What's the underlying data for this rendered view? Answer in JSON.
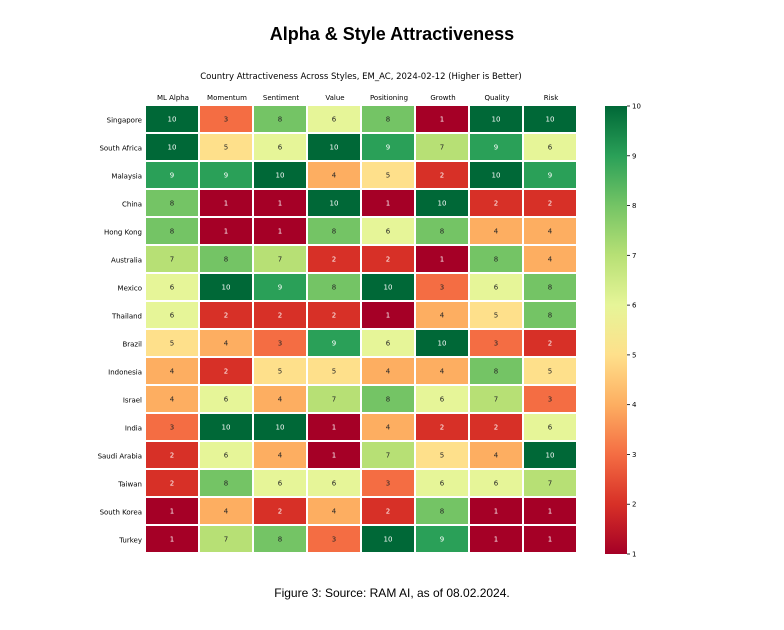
{
  "page_title": "Alpha & Style Attractiveness",
  "caption": "Figure 3: Source: RAM AI, as of 08.02.2024.",
  "chart_data": {
    "type": "heatmap",
    "title": "Country Attractiveness Across Styles, EM_AC, 2024-02-12 (Higher is Better)",
    "columns": [
      "ML Alpha",
      "Momentum",
      "Sentiment",
      "Value",
      "Positioning",
      "Growth",
      "Quality",
      "Risk"
    ],
    "rows": [
      "Singapore",
      "South Africa",
      "Malaysia",
      "China",
      "Hong Kong",
      "Australia",
      "Mexico",
      "Thailand",
      "Brazil",
      "Indonesia",
      "Israel",
      "India",
      "Saudi Arabia",
      "Taiwan",
      "South Korea",
      "Turkey"
    ],
    "values": [
      [
        10,
        3,
        8,
        6,
        8,
        1,
        10,
        10
      ],
      [
        10,
        5,
        6,
        10,
        9,
        7,
        9,
        6
      ],
      [
        9,
        9,
        10,
        4,
        5,
        2,
        10,
        9
      ],
      [
        8,
        1,
        1,
        10,
        1,
        10,
        2,
        2
      ],
      [
        8,
        1,
        1,
        8,
        6,
        8,
        4,
        4
      ],
      [
        7,
        8,
        7,
        2,
        2,
        1,
        8,
        4
      ],
      [
        6,
        10,
        9,
        8,
        10,
        3,
        6,
        8
      ],
      [
        6,
        2,
        2,
        2,
        1,
        4,
        5,
        8
      ],
      [
        5,
        4,
        3,
        9,
        6,
        10,
        3,
        2
      ],
      [
        4,
        2,
        5,
        5,
        4,
        4,
        8,
        5
      ],
      [
        4,
        6,
        4,
        7,
        8,
        6,
        7,
        3
      ],
      [
        3,
        10,
        10,
        1,
        4,
        2,
        2,
        6
      ],
      [
        2,
        6,
        4,
        1,
        7,
        5,
        4,
        10
      ],
      [
        2,
        8,
        6,
        6,
        3,
        6,
        6,
        7
      ],
      [
        1,
        4,
        2,
        4,
        2,
        8,
        1,
        1
      ],
      [
        1,
        7,
        8,
        3,
        10,
        9,
        1,
        1
      ]
    ],
    "colorbar": {
      "min": 1,
      "max": 10,
      "ticks": [
        1,
        2,
        3,
        4,
        5,
        6,
        7,
        8,
        9,
        10
      ]
    },
    "colormap": {
      "1": "#a50026",
      "2": "#d73027",
      "3": "#f46d43",
      "4": "#fdae61",
      "5": "#fee08b",
      "6": "#e6f598",
      "7": "#b7e075",
      "8": "#74c465",
      "9": "#2aa058",
      "10": "#006837"
    }
  }
}
